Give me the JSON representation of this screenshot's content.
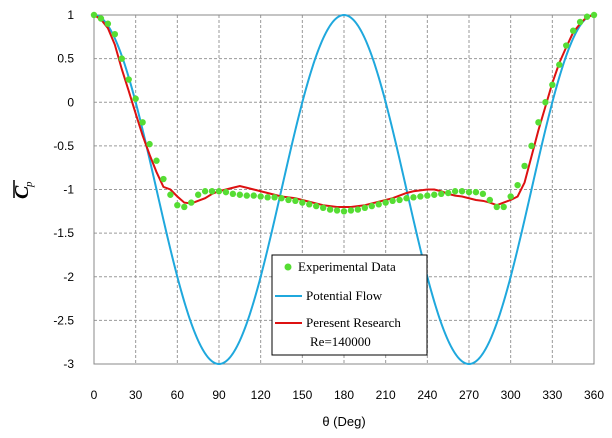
{
  "chart_data": {
    "type": "line",
    "title": "",
    "xlabel": "θ (Deg)",
    "ylabel": "C p",
    "ylabel_main": "C",
    "ylabel_sub": "p",
    "xlim": [
      0,
      360
    ],
    "ylim": [
      -3,
      1
    ],
    "xticks": [
      "0",
      "30",
      "60",
      "90",
      "120",
      "150",
      "180",
      "210",
      "240",
      "270",
      "300",
      "330",
      "360"
    ],
    "yticks": [
      "1",
      "0.5",
      "0",
      "-0.5",
      "-1",
      "-1.5",
      "-2",
      "-2.5",
      "-3"
    ],
    "grid": true,
    "legend_position": "bottom-center",
    "series": [
      {
        "name": "Experimental Data",
        "style": "markers",
        "color": "#55dd33",
        "x": [
          0,
          5,
          10,
          15,
          20,
          25,
          30,
          35,
          40,
          45,
          50,
          55,
          60,
          65,
          70,
          75,
          80,
          85,
          90,
          95,
          100,
          105,
          110,
          115,
          120,
          125,
          130,
          135,
          140,
          145,
          150,
          155,
          160,
          165,
          170,
          175,
          180,
          185,
          190,
          195,
          200,
          205,
          210,
          215,
          220,
          225,
          230,
          235,
          240,
          245,
          250,
          255,
          260,
          265,
          270,
          275,
          280,
          285,
          290,
          295,
          300,
          305,
          310,
          315,
          320,
          325,
          330,
          335,
          340,
          345,
          350,
          355,
          360
        ],
        "y": [
          1.0,
          0.96,
          0.9,
          0.78,
          0.5,
          0.26,
          0.04,
          -0.23,
          -0.48,
          -0.67,
          -0.88,
          -1.06,
          -1.18,
          -1.2,
          -1.15,
          -1.06,
          -1.02,
          -1.02,
          -1.02,
          -1.03,
          -1.05,
          -1.06,
          -1.07,
          -1.07,
          -1.08,
          -1.09,
          -1.09,
          -1.1,
          -1.12,
          -1.13,
          -1.15,
          -1.17,
          -1.19,
          -1.21,
          -1.23,
          -1.24,
          -1.25,
          -1.24,
          -1.23,
          -1.21,
          -1.19,
          -1.17,
          -1.15,
          -1.13,
          -1.12,
          -1.1,
          -1.09,
          -1.08,
          -1.07,
          -1.06,
          -1.05,
          -1.04,
          -1.02,
          -1.02,
          -1.03,
          -1.03,
          -1.05,
          -1.12,
          -1.2,
          -1.2,
          -1.08,
          -0.95,
          -0.73,
          -0.5,
          -0.23,
          0.0,
          0.2,
          0.43,
          0.65,
          0.82,
          0.92,
          0.98,
          1.0
        ]
      },
      {
        "name": "Potential Flow",
        "style": "line",
        "color": "#1fa8dd",
        "equation": "1 - 4 sin^2(theta)"
      },
      {
        "name": "Peresent Research",
        "style": "line",
        "color": "#dd1111",
        "x": [
          0,
          5,
          10,
          15,
          20,
          25,
          30,
          35,
          40,
          45,
          50,
          55,
          60,
          65,
          70,
          75,
          80,
          85,
          90,
          95,
          100,
          105,
          110,
          115,
          120,
          125,
          130,
          135,
          140,
          145,
          150,
          155,
          160,
          165,
          170,
          175,
          180,
          185,
          190,
          195,
          200,
          205,
          210,
          215,
          220,
          225,
          230,
          235,
          240,
          245,
          250,
          255,
          260,
          265,
          270,
          275,
          280,
          285,
          290,
          295,
          300,
          305,
          310,
          315,
          320,
          325,
          330,
          335,
          340,
          345,
          350,
          355,
          360
        ],
        "y": [
          1.0,
          0.95,
          0.85,
          0.66,
          0.38,
          0.13,
          -0.13,
          -0.38,
          -0.6,
          -0.8,
          -0.97,
          -1.0,
          -1.08,
          -1.15,
          -1.16,
          -1.13,
          -1.1,
          -1.05,
          -1.02,
          -1.0,
          -0.98,
          -0.96,
          -0.98,
          -1.0,
          -1.02,
          -1.04,
          -1.06,
          -1.08,
          -1.09,
          -1.1,
          -1.12,
          -1.14,
          -1.16,
          -1.18,
          -1.19,
          -1.2,
          -1.2,
          -1.2,
          -1.19,
          -1.18,
          -1.16,
          -1.14,
          -1.12,
          -1.1,
          -1.07,
          -1.04,
          -1.02,
          -1.01,
          -1.0,
          -1.0,
          -1.02,
          -1.05,
          -1.07,
          -1.08,
          -1.1,
          -1.12,
          -1.13,
          -1.15,
          -1.18,
          -1.15,
          -1.12,
          -1.08,
          -0.92,
          -0.62,
          -0.32,
          -0.05,
          0.22,
          0.45,
          0.63,
          0.8,
          0.9,
          0.98,
          1.0
        ]
      }
    ],
    "legend": {
      "entries": [
        "Experimental Data",
        "Potential Flow",
        "Peresent Research"
      ],
      "extra_line": "Re=140000"
    }
  }
}
